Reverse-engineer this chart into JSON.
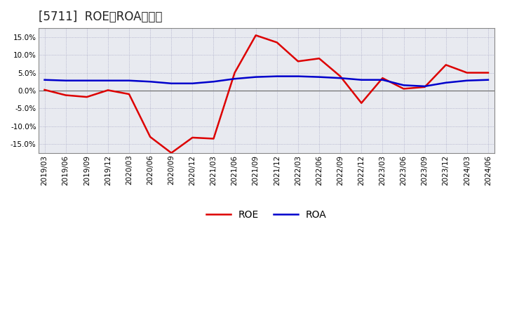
{
  "title": "[5711]  ROE、ROAの推移",
  "dates": [
    "2019/03",
    "2019/06",
    "2019/09",
    "2019/12",
    "2020/03",
    "2020/06",
    "2020/09",
    "2020/12",
    "2021/03",
    "2021/06",
    "2021/09",
    "2021/12",
    "2022/03",
    "2022/06",
    "2022/09",
    "2022/12",
    "2023/03",
    "2023/06",
    "2023/09",
    "2023/12",
    "2024/03",
    "2024/06"
  ],
  "roe_values": [
    0.2,
    -1.3,
    -1.8,
    0.1,
    -1.0,
    -13.0,
    -17.5,
    -13.2,
    -13.5,
    5.0,
    15.5,
    13.5,
    8.2,
    9.0,
    4.0,
    -3.5,
    3.5,
    0.5,
    1.0,
    7.2,
    5.0,
    5.0
  ],
  "roa_values": [
    3.0,
    2.8,
    2.8,
    2.8,
    2.8,
    2.5,
    2.0,
    2.0,
    2.5,
    3.3,
    3.8,
    4.0,
    4.0,
    3.8,
    3.5,
    3.0,
    3.0,
    1.5,
    1.2,
    2.2,
    2.8,
    3.0
  ],
  "roe_color": "#dd0000",
  "roa_color": "#0000cc",
  "ylim": [
    -17.5,
    17.5
  ],
  "yticks": [
    -15.0,
    -10.0,
    -5.0,
    0.0,
    5.0,
    10.0,
    15.0
  ],
  "background_color": "#ffffff",
  "plot_bg_color": "#e8eaf0",
  "grid_color": "#9999bb",
  "title_fontsize": 12,
  "tick_fontsize": 7.5,
  "legend_labels": [
    "ROE",
    "ROA"
  ],
  "line_width": 1.8
}
